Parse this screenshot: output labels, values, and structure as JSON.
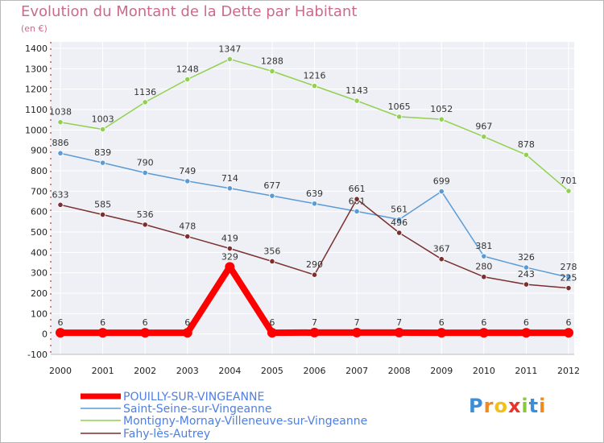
{
  "chart_data": {
    "type": "line",
    "title": "Evolution du Montant de la Dette par Habitant",
    "subtitle": "(en €)",
    "x": [
      "2000",
      "2001",
      "2002",
      "2003",
      "2004",
      "2005",
      "2006",
      "2007",
      "2008",
      "2009",
      "2010",
      "2011",
      "2012"
    ],
    "ylim": [
      -100,
      1400
    ],
    "yticks": [
      -100,
      0,
      100,
      200,
      300,
      400,
      500,
      600,
      700,
      800,
      900,
      1000,
      1100,
      1200,
      1300,
      1400
    ],
    "grid": true,
    "legend_position": "bottom-left",
    "series": [
      {
        "name": "POUILLY-SUR-VINGEANNE",
        "color": "#ff0000",
        "width": 8,
        "values": [
          6,
          6,
          6,
          6,
          329,
          6,
          7,
          7,
          7,
          6,
          6,
          6,
          6
        ]
      },
      {
        "name": "Saint-Seine-sur-Vingeanne",
        "color": "#5b9bd5",
        "width": 1.5,
        "values": [
          886,
          839,
          790,
          749,
          714,
          677,
          639,
          601,
          561,
          699,
          381,
          326,
          278
        ]
      },
      {
        "name": "Montigny-Mornay-Villeneuve-sur-Vingeanne",
        "color": "#92d050",
        "width": 1.5,
        "values": [
          1038,
          1003,
          1136,
          1248,
          1347,
          1288,
          1216,
          1143,
          1065,
          1052,
          967,
          878,
          701
        ]
      },
      {
        "name": "Fahy-lès-Autrey",
        "color": "#7b2f2f",
        "width": 1.5,
        "values": [
          633,
          585,
          536,
          478,
          419,
          356,
          290,
          661,
          496,
          367,
          280,
          243,
          225
        ]
      }
    ]
  },
  "logo": {
    "text": "Proxiti"
  }
}
